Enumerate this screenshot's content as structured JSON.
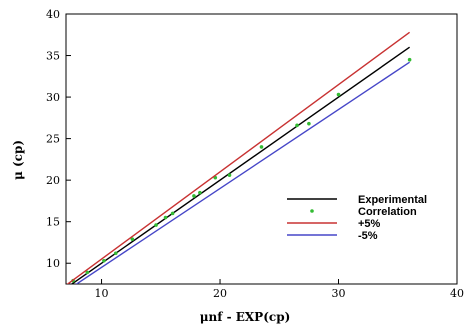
{
  "chart_data": {
    "type": "line",
    "xlabel": "μnf -  EXP(cp)",
    "ylabel": "μ (cp)",
    "xlim": [
      7,
      40
    ],
    "ylim": [
      7.5,
      40
    ],
    "x_ticks": [
      10,
      20,
      30,
      40
    ],
    "y_ticks": [
      10,
      15,
      20,
      25,
      30,
      35,
      40
    ],
    "grid": false,
    "legend_position": "bottom-right",
    "series": [
      {
        "name": "Experimental",
        "style": "line",
        "color": "#000000",
        "x": [
          7,
          36
        ],
        "y": [
          7,
          36
        ]
      },
      {
        "name": "Correlation",
        "style": "points",
        "color": "#33bb33",
        "x": [
          7.6,
          8.8,
          10.2,
          11.2,
          12.6,
          14.6,
          15.4,
          16.0,
          17.8,
          18.3,
          19.6,
          20.8,
          23.5,
          26.5,
          27.5,
          30.0,
          36.0
        ],
        "y": [
          7.9,
          8.9,
          10.3,
          11.2,
          12.9,
          14.6,
          15.5,
          16.0,
          18.1,
          18.5,
          20.3,
          20.6,
          24.0,
          26.6,
          26.8,
          30.3,
          34.5
        ]
      },
      {
        "name": "+5%",
        "style": "line",
        "color": "#c83232",
        "x": [
          7,
          36
        ],
        "y": [
          7.35,
          37.8
        ]
      },
      {
        "name": "-5%",
        "style": "line",
        "color": "#4646c8",
        "x": [
          7,
          36
        ],
        "y": [
          6.65,
          34.2
        ]
      }
    ]
  }
}
